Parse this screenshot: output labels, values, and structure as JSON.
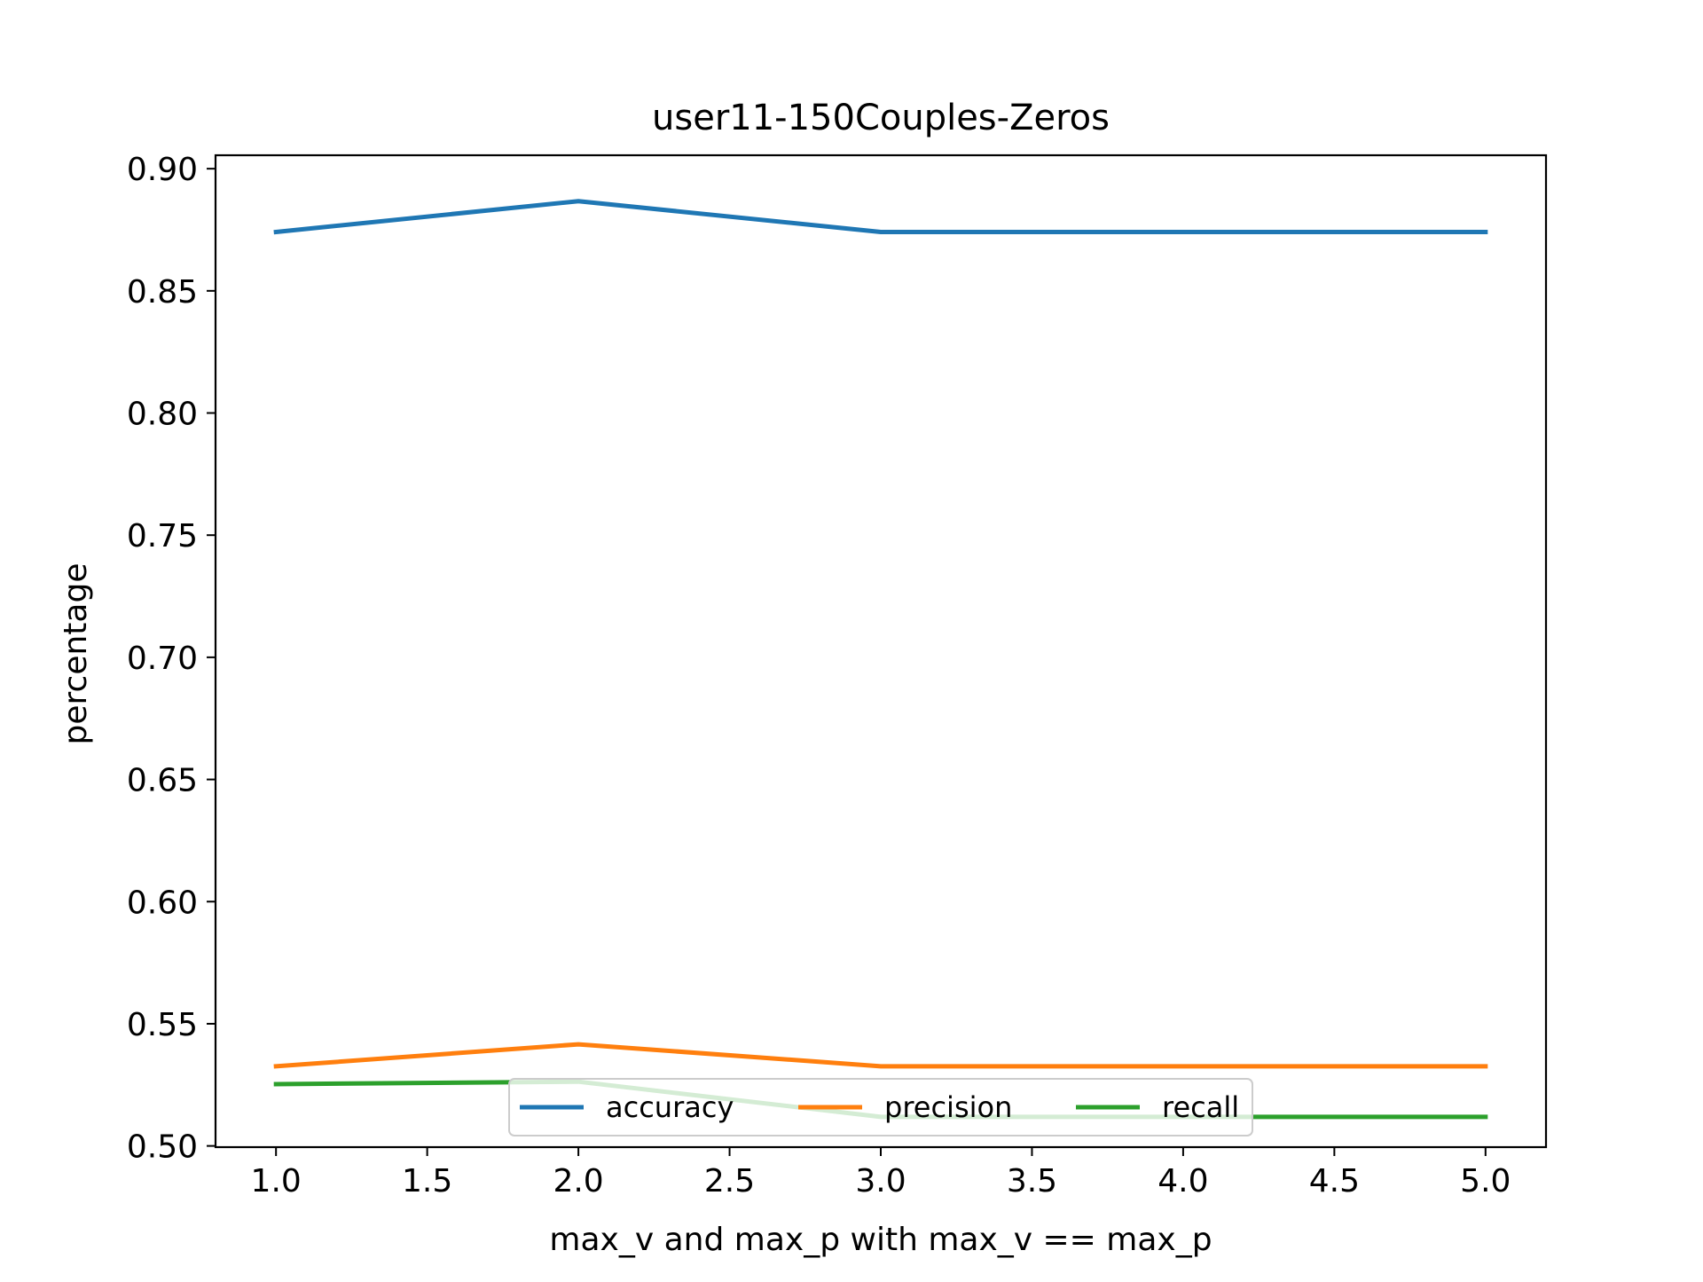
{
  "chart_data": {
    "type": "line",
    "title": "user11-150Couples-Zeros",
    "xlabel": "max_v and max_p with max_v == max_p",
    "ylabel": "percentage",
    "xlim": [
      0.8,
      5.2
    ],
    "ylim": [
      0.4995,
      0.9055
    ],
    "xticks": [
      "1.0",
      "1.5",
      "2.0",
      "2.5",
      "3.0",
      "3.5",
      "4.0",
      "4.5",
      "5.0"
    ],
    "yticks": [
      "0.50",
      "0.55",
      "0.60",
      "0.65",
      "0.70",
      "0.75",
      "0.80",
      "0.85",
      "0.90"
    ],
    "x": [
      1,
      2,
      3,
      4,
      5
    ],
    "series": [
      {
        "name": "accuracy",
        "color": "#1f77b4",
        "values": [
          0.8741,
          0.8867,
          0.8741,
          0.8741,
          0.8741
        ]
      },
      {
        "name": "precision",
        "color": "#ff7f0e",
        "values": [
          0.5326,
          0.5416,
          0.5326,
          0.5326,
          0.5326
        ]
      },
      {
        "name": "recall",
        "color": "#2ca02c",
        "values": [
          0.5253,
          0.5263,
          0.5119,
          0.5119,
          0.5119
        ]
      }
    ],
    "grid": false,
    "legend": {
      "position": "lower center",
      "columns": 3
    }
  }
}
